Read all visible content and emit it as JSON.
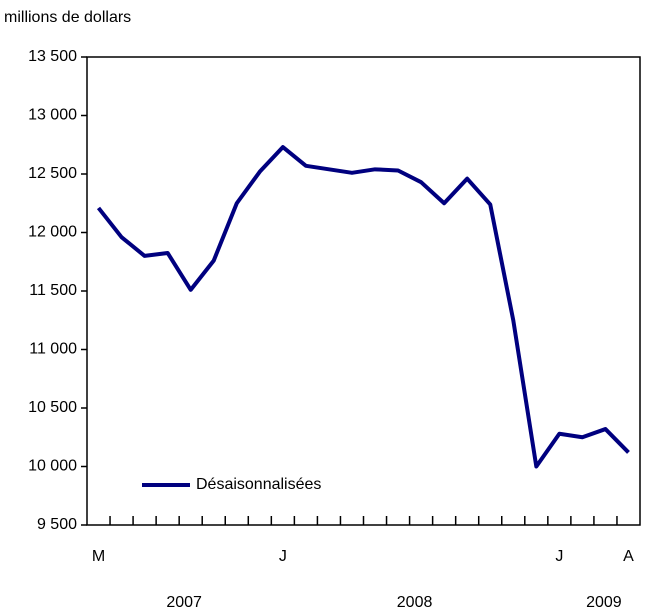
{
  "chart_data": {
    "type": "line",
    "y_label": "millions de dollars",
    "categories": [
      "M",
      null,
      null,
      null,
      null,
      null,
      null,
      null,
      "J",
      null,
      null,
      null,
      null,
      null,
      null,
      null,
      null,
      null,
      null,
      null,
      "J",
      null,
      null,
      "A"
    ],
    "year_labels": [
      "2007",
      "2008",
      "2009"
    ],
    "series": [
      {
        "name": "Désaisonnalisées",
        "color": "#00007f",
        "values": [
          12210,
          11960,
          11800,
          11825,
          11510,
          11760,
          12250,
          12520,
          12730,
          12570,
          12540,
          12510,
          12540,
          12530,
          12430,
          12250,
          12460,
          12240,
          11250,
          10000,
          10280,
          10250,
          10320,
          10120
        ]
      }
    ],
    "ylim": [
      9500,
      13500
    ],
    "yticks": [
      {
        "value": 9500,
        "label": "9 500"
      },
      {
        "value": 10000,
        "label": "10 000"
      },
      {
        "value": 10500,
        "label": "10 500"
      },
      {
        "value": 11000,
        "label": "11 000"
      },
      {
        "value": 11500,
        "label": "11 500"
      },
      {
        "value": 12000,
        "label": "12 000"
      },
      {
        "value": 12500,
        "label": "12 500"
      },
      {
        "value": 13000,
        "label": "13 000"
      },
      {
        "value": 13500,
        "label": "13 500"
      }
    ],
    "legend": "lower left"
  }
}
